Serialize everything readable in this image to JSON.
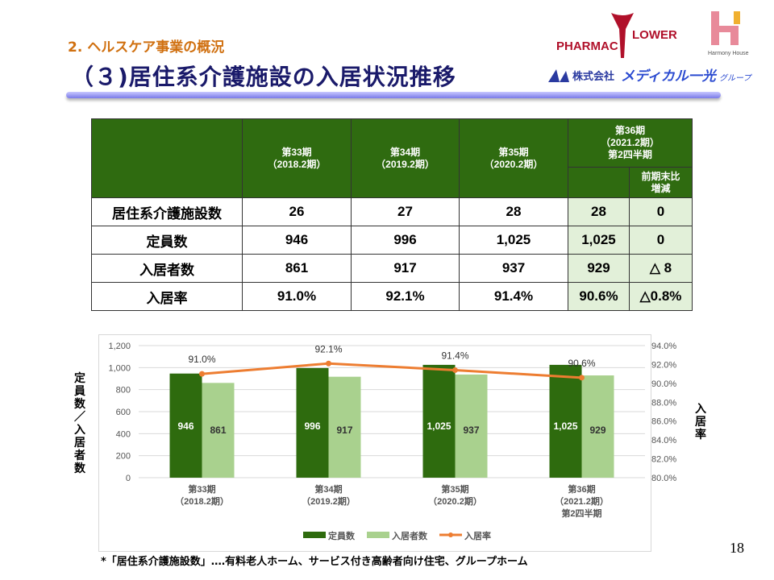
{
  "header": {
    "section": "2. ヘルスケア事業の概況",
    "title": "（３)居住系介護施設の入居状況推移",
    "logos": [
      "PHARMACY FLOWER",
      "Harmony House",
      "株式会社メディカル一光グループ"
    ]
  },
  "table": {
    "columns": [
      [
        "第33期",
        "（2018.2期）"
      ],
      [
        "第34期",
        "（2019.2期）"
      ],
      [
        "第35期",
        "（2020.2期）"
      ],
      [
        "第36期",
        "（2021.2期）",
        "第2四半期"
      ]
    ],
    "diff_header": [
      "前期末比",
      "増減"
    ],
    "rows": [
      {
        "label": "居住系介護施設数",
        "values": [
          "26",
          "27",
          "28",
          "28"
        ],
        "diff": "0"
      },
      {
        "label": "定員数",
        "values": [
          "946",
          "996",
          "1,025",
          "1,025"
        ],
        "diff": "0"
      },
      {
        "label": "入居者数",
        "values": [
          "861",
          "917",
          "937",
          "929"
        ],
        "diff": "△ 8"
      },
      {
        "label": "入居率",
        "values": [
          "91.0%",
          "92.1%",
          "91.4%",
          "90.6%"
        ],
        "diff": "△0.8%"
      }
    ]
  },
  "chart_data": {
    "type": "bar",
    "categories": [
      [
        "第33期",
        "（2018.2期）"
      ],
      [
        "第34期",
        "（2019.2期）"
      ],
      [
        "第35期",
        "（2020.2期）"
      ],
      [
        "第36期",
        "（2021.2期）",
        "第2四半期"
      ]
    ],
    "series": [
      {
        "name": "定員数",
        "type": "bar",
        "axis": "left",
        "color": "#2e6b0e",
        "values": [
          946,
          996,
          1025,
          1025
        ],
        "labels": [
          "946",
          "996",
          "1,025",
          "1,025"
        ]
      },
      {
        "name": "入居者数",
        "type": "bar",
        "axis": "left",
        "color": "#a9d18e",
        "values": [
          861,
          917,
          937,
          929
        ],
        "labels": [
          "861",
          "917",
          "937",
          "929"
        ]
      },
      {
        "name": "入居率",
        "type": "line",
        "axis": "right",
        "color": "#ed7d31",
        "values": [
          91.0,
          92.1,
          91.4,
          90.6
        ],
        "labels": [
          "91.0%",
          "92.1%",
          "91.4%",
          "90.6%"
        ]
      }
    ],
    "ylabel": "定員数／入居者数",
    "y2label": "入居率",
    "ylim": [
      0,
      1200
    ],
    "yticks": [
      "0",
      "200",
      "400",
      "600",
      "800",
      "1,000",
      "1,200"
    ],
    "y2lim": [
      80,
      94
    ],
    "y2ticks": [
      "80.0%",
      "82.0%",
      "84.0%",
      "86.0%",
      "88.0%",
      "90.0%",
      "92.0%",
      "94.0%"
    ],
    "grid": true,
    "legend": "bottom"
  },
  "footnote": "*「居住系介護施設数」‥‥有料老人ホーム、サービス付き高齢者向け住宅、グループホーム",
  "page_number": "18"
}
